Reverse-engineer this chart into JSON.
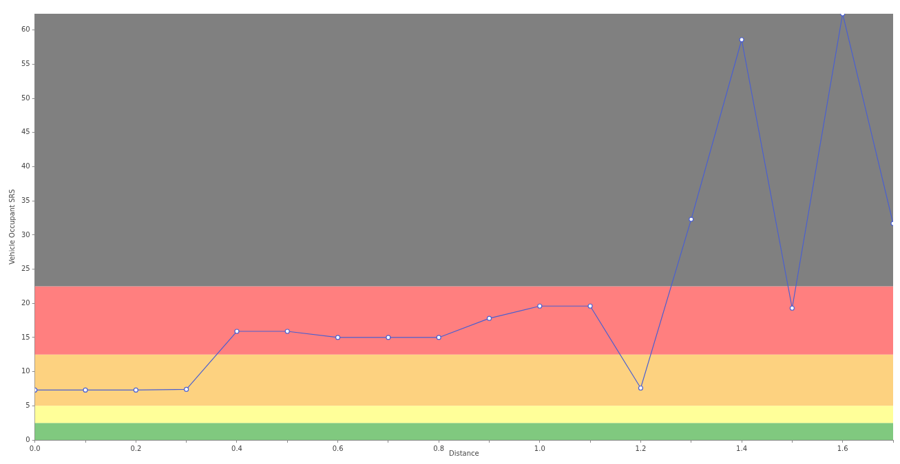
{
  "chart_data": {
    "type": "line",
    "xlabel": "Distance",
    "ylabel": "Vehicle Occupant SRS",
    "x": [
      0,
      0.1,
      0.2,
      0.3,
      0.4,
      0.5,
      0.6,
      0.7,
      0.8,
      0.9,
      1.0,
      1.1,
      1.2,
      1.3,
      1.4,
      1.5,
      1.6,
      1.7
    ],
    "series": [
      {
        "color": "#4a5fd0",
        "values": [
          7.3,
          7.3,
          7.3,
          7.4,
          15.9,
          15.9,
          15.0,
          15.0,
          15.0,
          17.8,
          19.6,
          19.6,
          7.6,
          32.3,
          58.6,
          19.3,
          62.4,
          31.7
        ]
      }
    ],
    "marker": "circle",
    "line_style": "solid",
    "xlim": [
      0,
      1.7
    ],
    "ylim": [
      0,
      62.4
    ],
    "xticks": [
      {
        "value": 0,
        "label": "0.0"
      },
      {
        "value": 0.1,
        "label": null
      },
      {
        "value": 0.2,
        "label": "0.2"
      },
      {
        "value": 0.3,
        "label": null
      },
      {
        "value": 0.4,
        "label": "0.4"
      },
      {
        "value": 0.5,
        "label": null
      },
      {
        "value": 0.6,
        "label": "0.6"
      },
      {
        "value": 0.7,
        "label": null
      },
      {
        "value": 0.8,
        "label": "0.8"
      },
      {
        "value": 0.9,
        "label": null
      },
      {
        "value": 1.0,
        "label": "1.0"
      },
      {
        "value": 1.1,
        "label": null
      },
      {
        "value": 1.2,
        "label": "1.2"
      },
      {
        "value": 1.3,
        "label": null
      },
      {
        "value": 1.4,
        "label": "1.4"
      },
      {
        "value": 1.5,
        "label": null
      },
      {
        "value": 1.6,
        "label": "1.6"
      },
      {
        "value": 1.7,
        "label": null
      }
    ],
    "yticks": [
      0,
      5,
      10,
      15,
      20,
      25,
      30,
      35,
      40,
      45,
      50,
      55,
      60
    ],
    "bands": [
      {
        "axis": "y",
        "from": 0,
        "to": 2.5,
        "color": "#80c97f"
      },
      {
        "axis": "y",
        "from": 2.5,
        "to": 5,
        "color": "#ffff99"
      },
      {
        "axis": "y",
        "from": 5,
        "to": 12.5,
        "color": "#fdd280"
      },
      {
        "axis": "y",
        "from": 12.5,
        "to": 22.5,
        "color": "#ff7f7f"
      },
      {
        "axis": "y",
        "from": 22.5,
        "to": 62.4,
        "color": "#808080"
      }
    ],
    "grid": false,
    "legend": false
  }
}
